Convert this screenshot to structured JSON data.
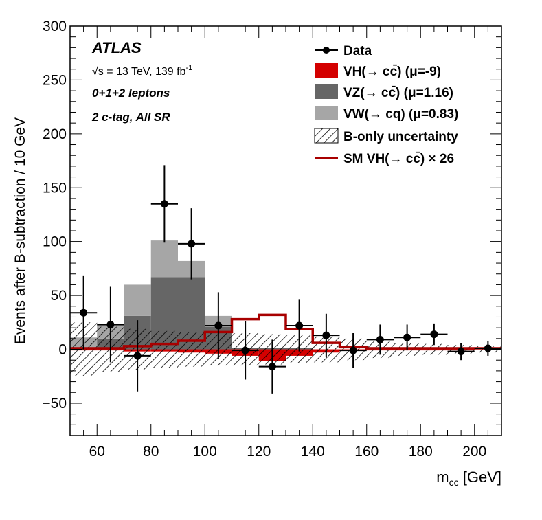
{
  "chart_data": {
    "type": "bar",
    "experiment_label": "ATLAS",
    "energy_label": "√s = 13 TeV, 139 fb",
    "energy_superscript": "-1",
    "channel_label": "0+1+2 leptons",
    "region_label": "2 c-tag, All SR",
    "xlabel_main": "m",
    "xlabel_sub": "cc",
    "xlabel_unit": "[GeV]",
    "ylabel": "Events after B-subtraction / 10 GeV",
    "xlim": [
      50,
      210
    ],
    "ylim": [
      -80,
      300
    ],
    "x_ticks": [
      60,
      80,
      100,
      120,
      140,
      160,
      180,
      200
    ],
    "y_ticks": [
      -50,
      0,
      50,
      100,
      150,
      200,
      250,
      300
    ],
    "y_tick_labels": [
      "−50",
      "0",
      "50",
      "100",
      "150",
      "200",
      "250",
      "300"
    ],
    "bin_edges": [
      50,
      60,
      70,
      80,
      90,
      100,
      110,
      120,
      130,
      140,
      150,
      160,
      170,
      180,
      190,
      200,
      210
    ],
    "bin_centers": [
      55,
      65,
      75,
      85,
      95,
      105,
      115,
      125,
      135,
      145,
      155,
      165,
      175,
      185,
      195,
      205
    ],
    "data": {
      "name": "Data",
      "values": [
        34,
        23,
        -6,
        135,
        98,
        22,
        -1,
        -16,
        22,
        13,
        -1,
        9,
        11,
        14,
        -2,
        1
      ],
      "errors": [
        34,
        35,
        33,
        36,
        33,
        31,
        27,
        25,
        24,
        20,
        16,
        14,
        12,
        10,
        8,
        7
      ]
    },
    "series": [
      {
        "name": "VH(→ cc̄) (μ=-9)",
        "color": "#d40000",
        "values": [
          -1,
          -1,
          -2,
          -2,
          -3,
          -4,
          -6,
          -11,
          -6,
          -3,
          -1,
          -1,
          -1,
          -1,
          -1,
          0
        ]
      },
      {
        "name": "VZ(→ cc̄) (μ=1.16)",
        "color": "#666666",
        "values": [
          1,
          10,
          31,
          67,
          67,
          21,
          1,
          1,
          1,
          0,
          0,
          0,
          0,
          0,
          0,
          0
        ]
      },
      {
        "name": "VW(→ cq) (μ=0.83)",
        "color": "#a6a6a6",
        "values": [
          10,
          13,
          29,
          34,
          15,
          10,
          0,
          0,
          0,
          0,
          0,
          0,
          0,
          0,
          0,
          0
        ]
      }
    ],
    "sm_vh": {
      "name": "SM VH(→ cc̄) × 26",
      "color": "#a80000",
      "values": [
        1,
        1,
        3,
        5,
        8,
        16,
        28,
        32,
        19,
        6,
        2,
        1,
        1,
        1,
        1,
        1
      ]
    },
    "uncertainty": {
      "name": "B-only uncertainty",
      "values": [
        25,
        21,
        19,
        17,
        16,
        15,
        15,
        14,
        13,
        12,
        10,
        8,
        6,
        5,
        4,
        3
      ]
    },
    "legend_placement": "top-right",
    "grid": false
  }
}
